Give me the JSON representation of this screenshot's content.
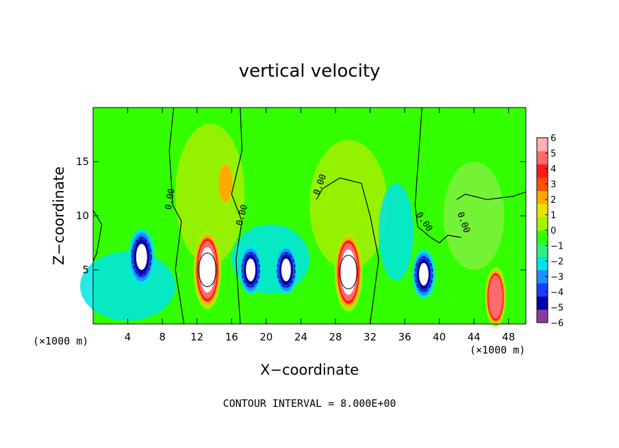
{
  "chart_data": {
    "type": "heatmap",
    "title": "vertical velocity",
    "xlabel": "X−coordinate",
    "ylabel": "Z−coordinate",
    "x_unit_left": "(×1000 m)",
    "x_unit_right": "(×1000 m)",
    "footer": "CONTOUR INTERVAL = 8.000E+00",
    "xlim": [
      0,
      50
    ],
    "ylim": [
      0,
      20
    ],
    "x_ticks": [
      4,
      8,
      12,
      16,
      20,
      24,
      28,
      32,
      36,
      40,
      44,
      48
    ],
    "y_ticks": [
      5,
      10,
      15
    ],
    "contour_label": "0.00",
    "colorbar": {
      "ticks": [
        "6",
        "5",
        "4",
        "3",
        "2",
        "1",
        "0",
        "−1",
        "−2",
        "−3",
        "−4",
        "−5",
        "−6"
      ],
      "range": [
        -6,
        6
      ],
      "colors": [
        "#8a3b9c",
        "#0000a8",
        "#1a3cff",
        "#1e90ff",
        "#00e5e5",
        "#30f080",
        "#33ff00",
        "#a6f000",
        "#e6e600",
        "#ffaa00",
        "#ff5000",
        "#ff1a1a",
        "#ff6a6a",
        "#ffb0b0"
      ]
    },
    "features": [
      {
        "kind": "updraft",
        "x": 13.2,
        "z": 5.0,
        "peak": 8
      },
      {
        "kind": "updraft",
        "x": 29.5,
        "z": 4.8,
        "peak": 8
      },
      {
        "kind": "updraft",
        "x": 46.5,
        "z": 2.5,
        "peak": 6
      },
      {
        "kind": "updraft",
        "x": 15.3,
        "z": 13.0,
        "peak": 3
      },
      {
        "kind": "downdraft",
        "x": 5.6,
        "z": 6.2,
        "peak": -8
      },
      {
        "kind": "downdraft",
        "x": 18.2,
        "z": 5.0,
        "peak": -8
      },
      {
        "kind": "downdraft",
        "x": 22.3,
        "z": 5.0,
        "peak": -8
      },
      {
        "kind": "downdraft",
        "x": 38.2,
        "z": 4.6,
        "peak": -8
      }
    ]
  }
}
